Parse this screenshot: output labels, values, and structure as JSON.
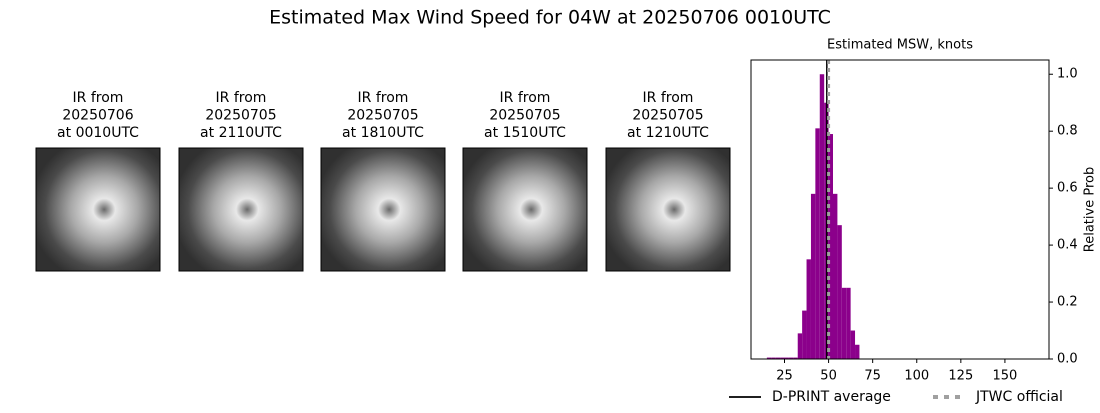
{
  "title": "Estimated Max Wind Speed for 04W at 20250706 0010UTC",
  "panels": [
    {
      "lines": [
        "IR from",
        "20250706",
        "at 0010UTC"
      ]
    },
    {
      "lines": [
        "IR from",
        "20250705",
        "at 2110UTC"
      ]
    },
    {
      "lines": [
        "IR from",
        "20250705",
        "at 1810UTC"
      ]
    },
    {
      "lines": [
        "IR from",
        "20250705",
        "at 1510UTC"
      ]
    },
    {
      "lines": [
        "IR from",
        "20250705",
        "at 1210UTC"
      ]
    }
  ],
  "chart_data": {
    "type": "histogram",
    "title": "Estimated MSW, knots",
    "ylabel": "Relative Prob",
    "bins": [
      15,
      17.5,
      20,
      22.5,
      25,
      27.5,
      30,
      32.5,
      35,
      37.5,
      40,
      42.5,
      45,
      47.5,
      50,
      52.5,
      55,
      57.5,
      60,
      62.5,
      65,
      67.5
    ],
    "counts": [
      0.005,
      0.005,
      0.005,
      0.005,
      0.005,
      0.005,
      0.005,
      0.09,
      0.17,
      0.35,
      0.58,
      0.81,
      1.0,
      0.9,
      0.79,
      0.58,
      0.47,
      0.25,
      0.25,
      0.1,
      0.05
    ],
    "color": "#8b008b",
    "xlim": [
      6,
      175
    ],
    "ylim": [
      0,
      1.05
    ],
    "xticks": [
      25,
      50,
      75,
      100,
      125,
      150
    ],
    "yticks": [
      {
        "value": 0,
        "label": "0.0"
      },
      {
        "value": 0.2,
        "label": "0.2"
      },
      {
        "value": 0.4,
        "label": "0.4"
      },
      {
        "value": 0.6,
        "label": "0.6"
      },
      {
        "value": 0.8,
        "label": "0.8"
      },
      {
        "value": 1.0,
        "label": "1.0"
      }
    ],
    "lines": [
      {
        "name": "D-PRINT average",
        "value": 49,
        "color": "#000000",
        "style": "solid"
      },
      {
        "name": "JTWC official",
        "value": 50,
        "color": "#a0a0a0",
        "style": "dotted"
      }
    ]
  }
}
